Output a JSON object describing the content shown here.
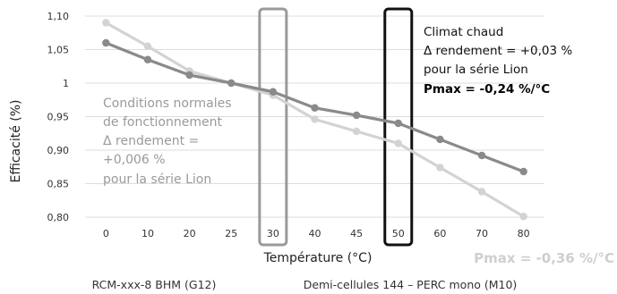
{
  "chart_data": {
    "type": "line",
    "xlabel": "Température (°C)",
    "ylabel": "Efficacité (%)",
    "categories": [
      "0",
      "10",
      "20",
      "25",
      "30",
      "40",
      "45",
      "50",
      "60",
      "70",
      "80"
    ],
    "y_ticks": [
      "0,80",
      "0,85",
      "0,90",
      "0,95",
      "1",
      "1,05",
      "1,10"
    ],
    "ylim": [
      0.8,
      1.1
    ],
    "grid": "horizontal",
    "series": [
      {
        "name": "RCM-xxx-8 BHM (G12)",
        "color": "#8a8a8a",
        "values": [
          1.06,
          1.035,
          1.012,
          1.0,
          0.987,
          0.963,
          0.952,
          0.94,
          0.916,
          0.892,
          0.868
        ]
      },
      {
        "name": "Demi-cellules 144 – PERC mono (M10)",
        "color": "#d3d3d3",
        "values": [
          1.09,
          1.055,
          1.018,
          1.0,
          0.982,
          0.946,
          0.928,
          0.91,
          0.874,
          0.838,
          0.801
        ]
      }
    ],
    "highlights": [
      {
        "category": "30",
        "color": "#9a9a9a"
      },
      {
        "category": "50",
        "color": "#111111"
      }
    ],
    "annotations": {
      "normal": [
        "Conditions normales",
        "de fonctionnement",
        "Δ rendement =",
        "+0,006 %",
        "pour la série Lion"
      ],
      "hot_title": "Climat chaud",
      "hot_lines": [
        "Δ rendement = +0,03 %",
        "pour la série Lion"
      ],
      "hot_pmax": "Pmax = -0,24 %/°C",
      "grey_pmax": "Pmax = -0,36 %/°C"
    }
  }
}
